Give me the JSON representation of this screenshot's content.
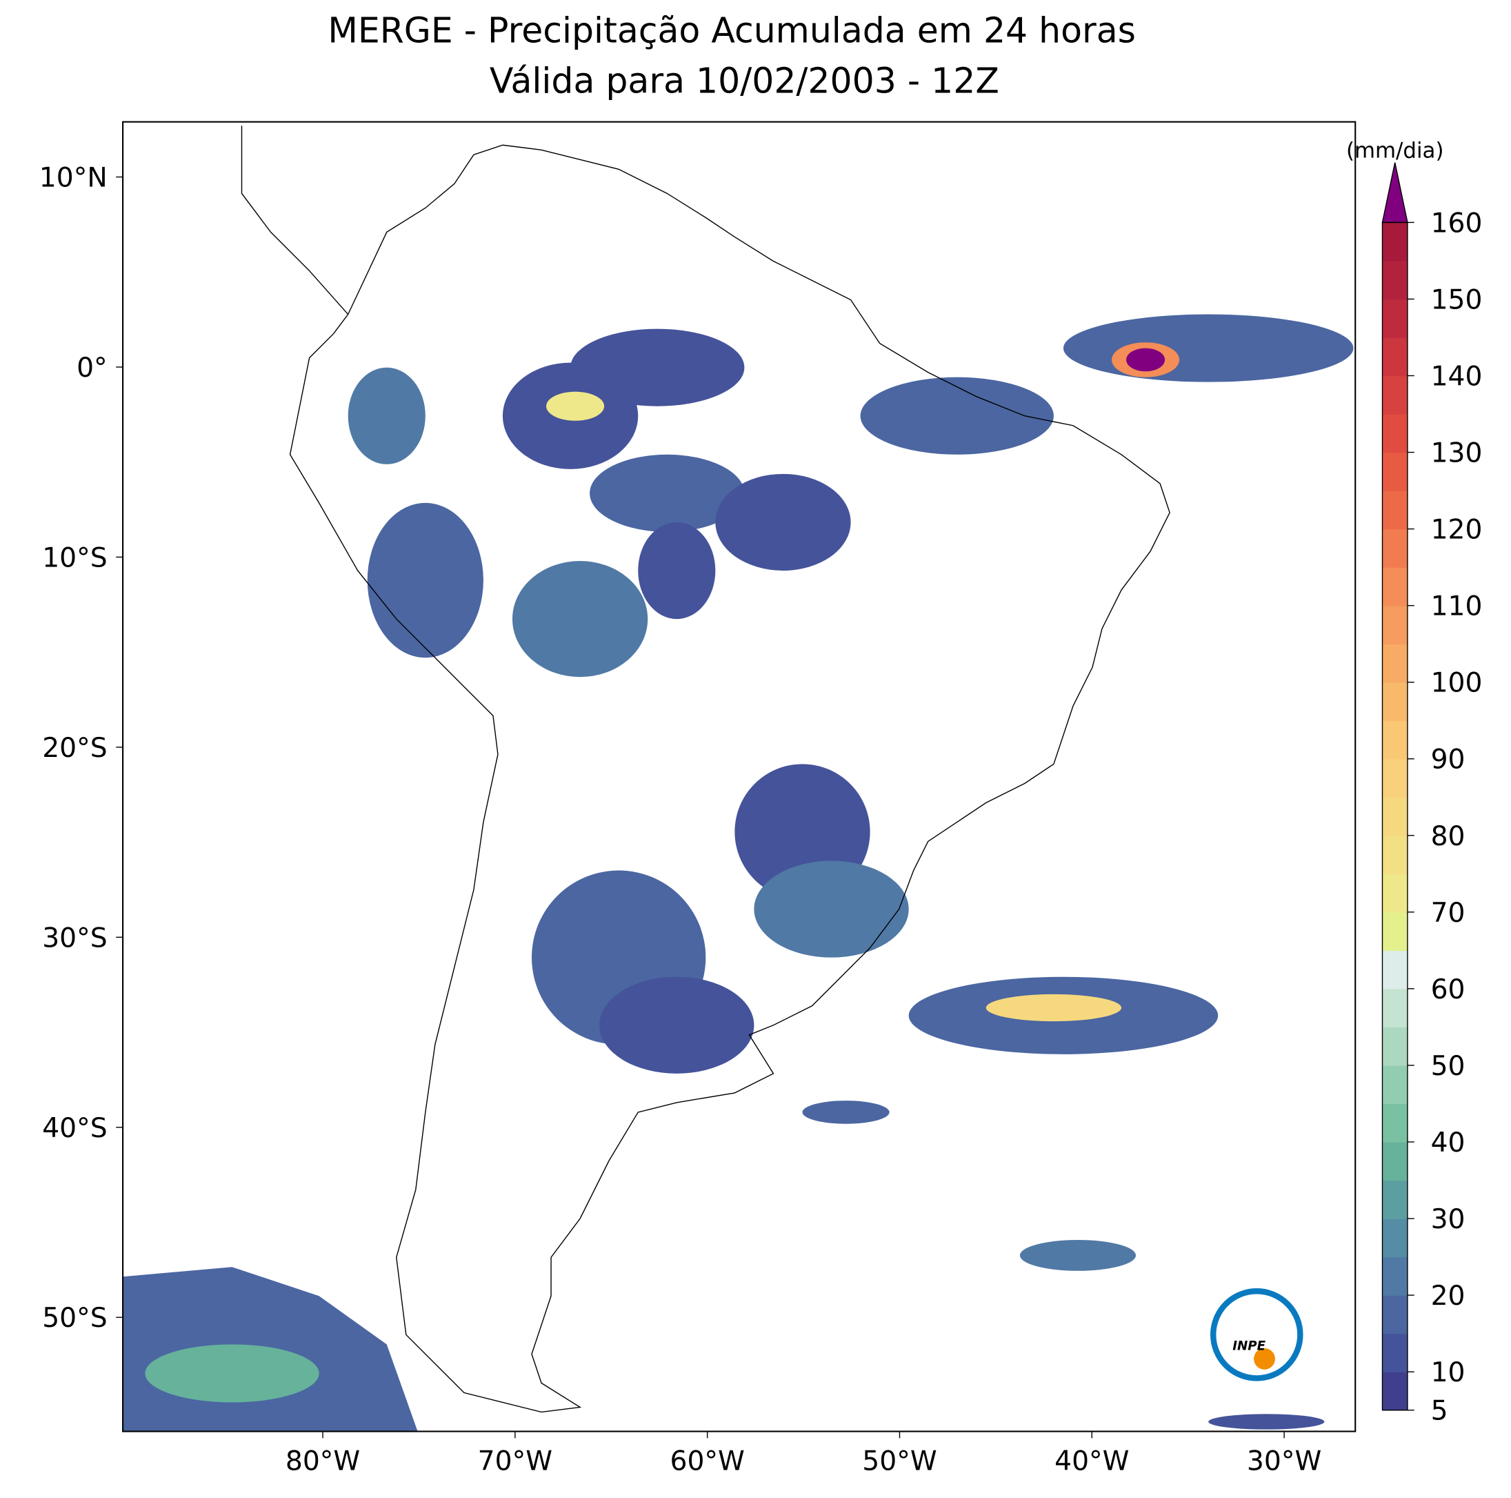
{
  "chart_data": {
    "type": "map",
    "title": "MERGE - Precipitação Acumulada em 24 horas",
    "subtitle": "Válida para 10/02/2003 - 12Z",
    "xlim": [
      -90.4,
      -26.3
    ],
    "ylim": [
      -56,
      12.9
    ],
    "xticks": [
      {
        "value": -80,
        "label": "80°W"
      },
      {
        "value": -70,
        "label": "70°W"
      },
      {
        "value": -60,
        "label": "60°W"
      },
      {
        "value": -50,
        "label": "50°W"
      },
      {
        "value": -40,
        "label": "40°W"
      },
      {
        "value": -30,
        "label": "30°W"
      }
    ],
    "yticks": [
      {
        "value": 10,
        "label": "10°N"
      },
      {
        "value": 0,
        "label": "0°"
      },
      {
        "value": -10,
        "label": "10°S"
      },
      {
        "value": -20,
        "label": "20°S"
      },
      {
        "value": -30,
        "label": "30°S"
      },
      {
        "value": -40,
        "label": "40°S"
      },
      {
        "value": -50,
        "label": "50°S"
      }
    ],
    "colorbar": {
      "label": "(mm/dia)",
      "lim": [
        5,
        160
      ],
      "ticks": [
        5,
        10,
        20,
        30,
        40,
        50,
        60,
        70,
        80,
        90,
        100,
        110,
        120,
        130,
        140,
        150,
        160
      ],
      "colors": [
        "#3f3f8e",
        "#45539a",
        "#4b66a1",
        "#5079a5",
        "#558ca6",
        "#5c9fa1",
        "#66b29b",
        "#79c1a1",
        "#92cdb0",
        "#abd8bf",
        "#c4e3d1",
        "#dcedea",
        "#e4f08c",
        "#eee88a",
        "#f3df84",
        "#f6d87f",
        "#f9d07b",
        "#fac774",
        "#f9b96b",
        "#f8ab64",
        "#f69c5e",
        "#f48d57",
        "#f17c4f",
        "#ed6a48",
        "#e85b43",
        "#e04d40",
        "#d6423f",
        "#cb363f",
        "#bf2b3e",
        "#b3223d",
        "#a81a3c"
      ],
      "extend_color": "#800080"
    },
    "logo_label": "INPE"
  }
}
